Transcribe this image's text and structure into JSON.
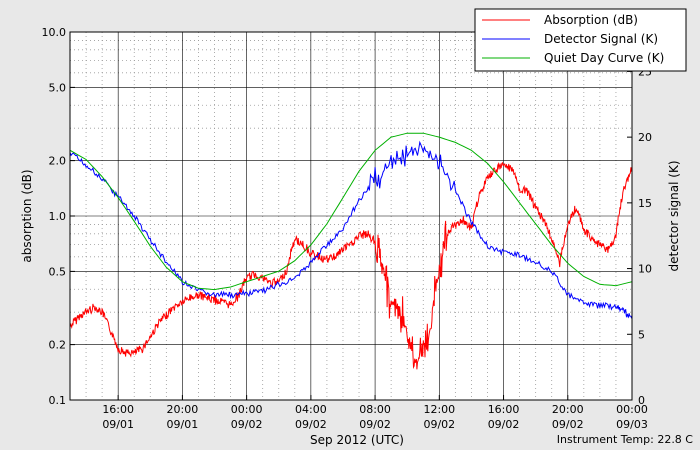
{
  "chart_data": {
    "type": "line",
    "xlabel": "Sep 2012 (UTC)",
    "ylabel_left": "absorption (dB)",
    "ylabel_right": "detector signal (K)",
    "footer": "Instrument Temp: 22.8 C",
    "x_range_hours": [
      13,
      48
    ],
    "y_left_scale": "log",
    "y_left_range": [
      0.1,
      10.0
    ],
    "y_right_range": [
      0,
      28
    ],
    "grid": true,
    "legend_placement": "top-right",
    "x_ticks": [
      {
        "t": 16,
        "time": "16:00",
        "date": "09/01"
      },
      {
        "t": 20,
        "time": "20:00",
        "date": "09/01"
      },
      {
        "t": 24,
        "time": "00:00",
        "date": "09/02"
      },
      {
        "t": 28,
        "time": "04:00",
        "date": "09/02"
      },
      {
        "t": 32,
        "time": "08:00",
        "date": "09/02"
      },
      {
        "t": 36,
        "time": "12:00",
        "date": "09/02"
      },
      {
        "t": 40,
        "time": "16:00",
        "date": "09/02"
      },
      {
        "t": 44,
        "time": "20:00",
        "date": "09/02"
      },
      {
        "t": 48,
        "time": "00:00",
        "date": "09/03"
      }
    ],
    "y_left_ticks": [
      {
        "v": 0.1,
        "label": "0.1"
      },
      {
        "v": 0.2,
        "label": "0.2"
      },
      {
        "v": 0.5,
        "label": "0.5"
      },
      {
        "v": 1.0,
        "label": "1.0"
      },
      {
        "v": 2.0,
        "label": "2.0"
      },
      {
        "v": 5.0,
        "label": "5.0"
      },
      {
        "v": 10.0,
        "label": "10.0"
      }
    ],
    "y_right_ticks": [
      {
        "v": 0,
        "label": "0"
      },
      {
        "v": 5,
        "label": "5"
      },
      {
        "v": 10,
        "label": "10"
      },
      {
        "v": 15,
        "label": "15"
      },
      {
        "v": 20,
        "label": "20"
      },
      {
        "v": 25,
        "label": "25"
      }
    ],
    "series": [
      {
        "name": "Absorption (dB)",
        "axis": "left",
        "color": "#ff0000",
        "points": [
          [
            13.0,
            0.25
          ],
          [
            13.5,
            0.28
          ],
          [
            14.0,
            0.3
          ],
          [
            14.5,
            0.32
          ],
          [
            15.0,
            0.3
          ],
          [
            15.5,
            0.24
          ],
          [
            16.0,
            0.19
          ],
          [
            16.5,
            0.18
          ],
          [
            17.0,
            0.18
          ],
          [
            17.5,
            0.19
          ],
          [
            18.0,
            0.22
          ],
          [
            18.5,
            0.26
          ],
          [
            19.0,
            0.29
          ],
          [
            19.5,
            0.32
          ],
          [
            20.0,
            0.34
          ],
          [
            20.5,
            0.36
          ],
          [
            21.0,
            0.37
          ],
          [
            21.5,
            0.36
          ],
          [
            22.0,
            0.35
          ],
          [
            22.5,
            0.34
          ],
          [
            23.0,
            0.33
          ],
          [
            23.5,
            0.37
          ],
          [
            24.0,
            0.46
          ],
          [
            24.5,
            0.48
          ],
          [
            25.0,
            0.46
          ],
          [
            25.5,
            0.43
          ],
          [
            26.0,
            0.44
          ],
          [
            26.5,
            0.5
          ],
          [
            27.0,
            0.75
          ],
          [
            27.5,
            0.7
          ],
          [
            28.0,
            0.62
          ],
          [
            28.5,
            0.6
          ],
          [
            29.0,
            0.58
          ],
          [
            29.5,
            0.6
          ],
          [
            30.0,
            0.66
          ],
          [
            30.5,
            0.7
          ],
          [
            31.0,
            0.78
          ],
          [
            31.5,
            0.8
          ],
          [
            32.0,
            0.72
          ],
          [
            32.5,
            0.5
          ],
          [
            33.0,
            0.35
          ],
          [
            33.5,
            0.3
          ],
          [
            34.0,
            0.22
          ],
          [
            34.5,
            0.16
          ],
          [
            35.0,
            0.18
          ],
          [
            35.5,
            0.25
          ],
          [
            36.0,
            0.5
          ],
          [
            36.5,
            0.8
          ],
          [
            37.0,
            0.9
          ],
          [
            37.5,
            0.95
          ],
          [
            38.0,
            0.85
          ],
          [
            38.5,
            1.3
          ],
          [
            39.0,
            1.6
          ],
          [
            39.5,
            1.8
          ],
          [
            40.0,
            1.9
          ],
          [
            40.5,
            1.8
          ],
          [
            41.0,
            1.4
          ],
          [
            41.5,
            1.35
          ],
          [
            42.0,
            1.1
          ],
          [
            42.5,
            0.95
          ],
          [
            43.0,
            0.75
          ],
          [
            43.5,
            0.55
          ],
          [
            44.0,
            0.9
          ],
          [
            44.5,
            1.1
          ],
          [
            45.0,
            0.85
          ],
          [
            45.5,
            0.75
          ],
          [
            46.0,
            0.7
          ],
          [
            46.5,
            0.65
          ],
          [
            47.0,
            0.78
          ],
          [
            47.5,
            1.4
          ],
          [
            48.0,
            1.8
          ]
        ]
      },
      {
        "name": "Detector Signal (K)",
        "axis": "right",
        "color": "#0000ff",
        "points": [
          [
            13.0,
            18.8
          ],
          [
            14.0,
            17.9
          ],
          [
            15.0,
            16.8
          ],
          [
            16.0,
            15.5
          ],
          [
            17.0,
            14.0
          ],
          [
            18.0,
            12.2
          ],
          [
            19.0,
            10.5
          ],
          [
            20.0,
            9.0
          ],
          [
            21.0,
            8.3
          ],
          [
            22.0,
            8.0
          ],
          [
            23.0,
            8.0
          ],
          [
            24.0,
            8.1
          ],
          [
            25.0,
            8.3
          ],
          [
            26.0,
            8.8
          ],
          [
            27.0,
            9.2
          ],
          [
            28.0,
            10.5
          ],
          [
            29.0,
            11.8
          ],
          [
            30.0,
            13.0
          ],
          [
            31.0,
            15.2
          ],
          [
            32.0,
            16.8
          ],
          [
            33.0,
            18.0
          ],
          [
            34.0,
            18.8
          ],
          [
            35.0,
            19.2
          ],
          [
            36.0,
            18.0
          ],
          [
            37.0,
            16.0
          ],
          [
            38.0,
            13.5
          ],
          [
            39.0,
            11.8
          ],
          [
            40.0,
            11.2
          ],
          [
            41.0,
            11.0
          ],
          [
            42.0,
            10.5
          ],
          [
            43.0,
            9.8
          ],
          [
            44.0,
            8.0
          ],
          [
            45.0,
            7.3
          ],
          [
            46.0,
            7.2
          ],
          [
            47.0,
            7.1
          ],
          [
            47.5,
            6.8
          ],
          [
            48.0,
            6.2
          ]
        ]
      },
      {
        "name": "Quiet Day Curve (K)",
        "axis": "right",
        "color": "#00b000",
        "points": [
          [
            13.0,
            19.0
          ],
          [
            14.0,
            18.3
          ],
          [
            15.0,
            17.0
          ],
          [
            16.0,
            15.4
          ],
          [
            17.0,
            13.6
          ],
          [
            18.0,
            11.7
          ],
          [
            19.0,
            10.1
          ],
          [
            20.0,
            9.0
          ],
          [
            21.0,
            8.5
          ],
          [
            22.0,
            8.4
          ],
          [
            23.0,
            8.6
          ],
          [
            24.0,
            9.0
          ],
          [
            25.0,
            9.4
          ],
          [
            26.0,
            9.8
          ],
          [
            27.0,
            10.6
          ],
          [
            28.0,
            11.8
          ],
          [
            29.0,
            13.4
          ],
          [
            30.0,
            15.4
          ],
          [
            31.0,
            17.4
          ],
          [
            32.0,
            19.0
          ],
          [
            33.0,
            20.0
          ],
          [
            34.0,
            20.3
          ],
          [
            35.0,
            20.3
          ],
          [
            36.0,
            20.0
          ],
          [
            37.0,
            19.6
          ],
          [
            38.0,
            19.0
          ],
          [
            39.0,
            18.0
          ],
          [
            40.0,
            16.6
          ],
          [
            41.0,
            15.0
          ],
          [
            42.0,
            13.4
          ],
          [
            43.0,
            11.8
          ],
          [
            44.0,
            10.4
          ],
          [
            45.0,
            9.4
          ],
          [
            46.0,
            8.8
          ],
          [
            47.0,
            8.7
          ],
          [
            48.0,
            9.0
          ]
        ]
      }
    ]
  }
}
